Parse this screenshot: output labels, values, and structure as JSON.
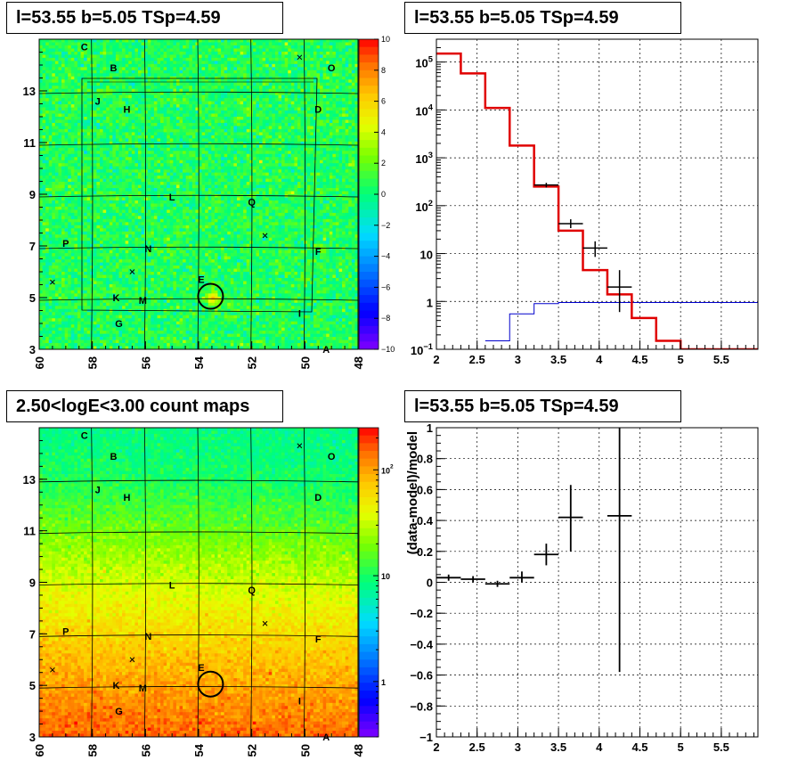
{
  "titles": {
    "top_left": "l=53.55 b=5.05 TSp=4.59",
    "top_right": "l=53.55 b=5.05 TSp=4.59",
    "bottom_left": "2.50<logE<3.00 count maps",
    "bottom_right": "l=53.55 b=5.05 TSp=4.59"
  },
  "colors": {
    "data": "#000000",
    "model": "#e00000",
    "background_model": "#0000cc",
    "grid": "#000000"
  },
  "chart_data": [
    {
      "type": "heatmap",
      "name": "residual significance map",
      "x_ticks": [
        60,
        58,
        56,
        54,
        52,
        50,
        48
      ],
      "y_ticks": [
        3,
        5,
        7,
        9,
        11,
        13
      ],
      "xlim": [
        60,
        48
      ],
      "ylim": [
        3,
        15
      ],
      "colorbar_ticks": [
        10,
        8,
        6,
        4,
        2,
        0,
        -2,
        -4,
        -6,
        -8,
        -10
      ],
      "colorbar_range": [
        -10,
        10
      ],
      "source_circle": {
        "l": 53.55,
        "b": 5.05
      },
      "sources": [
        {
          "label": "C",
          "l": 58.3,
          "b": 14.7
        },
        {
          "label": "B",
          "l": 57.2,
          "b": 13.9
        },
        {
          "label": "O",
          "l": 49.0,
          "b": 13.9
        },
        {
          "label": "J",
          "l": 57.8,
          "b": 12.6
        },
        {
          "label": "H",
          "l": 56.7,
          "b": 12.3
        },
        {
          "label": "D",
          "l": 49.5,
          "b": 12.3
        },
        {
          "label": "L",
          "l": 55.0,
          "b": 8.9
        },
        {
          "label": "Q",
          "l": 52.0,
          "b": 8.7
        },
        {
          "label": "P",
          "l": 59.0,
          "b": 7.1
        },
        {
          "label": "N",
          "l": 55.9,
          "b": 6.9
        },
        {
          "label": "F",
          "l": 49.5,
          "b": 6.8
        },
        {
          "label": "E",
          "l": 53.9,
          "b": 5.7
        },
        {
          "label": "K",
          "l": 57.1,
          "b": 5.0
        },
        {
          "label": "M",
          "l": 56.1,
          "b": 4.9
        },
        {
          "label": "I",
          "l": 50.2,
          "b": 4.4
        },
        {
          "label": "G",
          "l": 57.0,
          "b": 4.0
        },
        {
          "label": "A",
          "l": 49.2,
          "b": 3.0
        }
      ],
      "crosses": [
        {
          "l": 50.2,
          "b": 14.3
        },
        {
          "l": 51.5,
          "b": 7.4
        },
        {
          "l": 56.5,
          "b": 6.0
        },
        {
          "l": 59.5,
          "b": 5.6
        }
      ]
    },
    {
      "type": "line",
      "name": "spectrum",
      "log_y": true,
      "xlim": [
        2,
        5.95
      ],
      "ylim": [
        0.1,
        300000
      ],
      "x_ticks": [
        2,
        2.5,
        3,
        3.5,
        4,
        4.5,
        5,
        5.5
      ],
      "x_tick_labels": [
        "2",
        "2.5",
        "3",
        "3.5",
        "4",
        "4.5",
        "5",
        "5.5"
      ],
      "y_ticks": [
        0.1,
        1,
        10,
        100,
        1000,
        10000,
        100000
      ],
      "y_tick_labels": [
        {
          "base": "10",
          "exp": "−1"
        },
        {
          "base": "1",
          "exp": ""
        },
        {
          "base": "10",
          "exp": ""
        },
        {
          "base": "10",
          "exp": "2"
        },
        {
          "base": "10",
          "exp": "3"
        },
        {
          "base": "10",
          "exp": "4"
        },
        {
          "base": "10",
          "exp": "5"
        }
      ],
      "model_step": {
        "edges": [
          2.0,
          2.3,
          2.6,
          2.9,
          3.2,
          3.5,
          3.8,
          4.1,
          4.4,
          4.7,
          5.0,
          5.95
        ],
        "values": [
          150000,
          58000,
          11000,
          1800,
          250,
          30,
          4.5,
          1.4,
          0.45,
          0.15,
          0.1
        ]
      },
      "background_step": {
        "edges": [
          2.6,
          2.9,
          3.2,
          3.5,
          5.95
        ],
        "values": [
          0.15,
          0.55,
          0.9,
          0.95
        ]
      },
      "data_points": [
        {
          "x": 3.35,
          "xerr": 0.15,
          "y": 270,
          "ylo": 240,
          "yhi": 300
        },
        {
          "x": 3.65,
          "xerr": 0.15,
          "y": 42,
          "ylo": 34,
          "yhi": 52
        },
        {
          "x": 3.95,
          "xerr": 0.15,
          "y": 13,
          "ylo": 8.5,
          "yhi": 18
        },
        {
          "x": 4.25,
          "xerr": 0.15,
          "y": 2,
          "ylo": 0.6,
          "yhi": 4.5
        }
      ]
    },
    {
      "type": "heatmap",
      "name": "count map",
      "x_ticks": [
        60,
        58,
        56,
        54,
        52,
        50,
        48
      ],
      "y_ticks": [
        3,
        5,
        7,
        9,
        11,
        13
      ],
      "xlim": [
        60,
        48
      ],
      "ylim": [
        3,
        15
      ],
      "colorbar_ticks": [
        {
          "base": "10",
          "exp": "2"
        },
        {
          "base": "10",
          "exp": ""
        },
        {
          "base": "1",
          "exp": ""
        }
      ],
      "colorbar_log_range": [
        0.3,
        250
      ]
    },
    {
      "type": "scatter",
      "name": "residuals",
      "xlim": [
        2,
        5.95
      ],
      "ylim": [
        -1,
        1
      ],
      "ylabel": "(data-model)/model",
      "x_ticks": [
        2,
        2.5,
        3,
        3.5,
        4,
        4.5,
        5,
        5.5
      ],
      "x_tick_labels": [
        "2",
        "2.5",
        "3",
        "3.5",
        "4",
        "4.5",
        "5",
        "5.5"
      ],
      "y_ticks": [
        -1,
        -0.8,
        -0.6,
        -0.4,
        -0.2,
        0,
        0.2,
        0.4,
        0.6,
        0.8,
        1
      ],
      "y_tick_labels": [
        "−1",
        "−0.8",
        "−0.6",
        "−0.4",
        "−0.2",
        "0",
        "0.2",
        "0.4",
        "0.6",
        "0.8",
        "1"
      ],
      "points": [
        {
          "x": 2.15,
          "xerr": 0.15,
          "y": 0.03,
          "ylo": 0.01,
          "yhi": 0.05
        },
        {
          "x": 2.45,
          "xerr": 0.15,
          "y": 0.02,
          "ylo": 0.0,
          "yhi": 0.04
        },
        {
          "x": 2.75,
          "xerr": 0.15,
          "y": -0.01,
          "ylo": -0.03,
          "yhi": 0.01
        },
        {
          "x": 3.05,
          "xerr": 0.15,
          "y": 0.03,
          "ylo": 0.0,
          "yhi": 0.07
        },
        {
          "x": 3.35,
          "xerr": 0.15,
          "y": 0.18,
          "ylo": 0.11,
          "yhi": 0.25
        },
        {
          "x": 3.65,
          "xerr": 0.15,
          "y": 0.42,
          "ylo": 0.2,
          "yhi": 0.63
        },
        {
          "x": 4.25,
          "xerr": 0.15,
          "y": 0.43,
          "ylo": -0.58,
          "yhi": 1.0
        }
      ]
    }
  ]
}
